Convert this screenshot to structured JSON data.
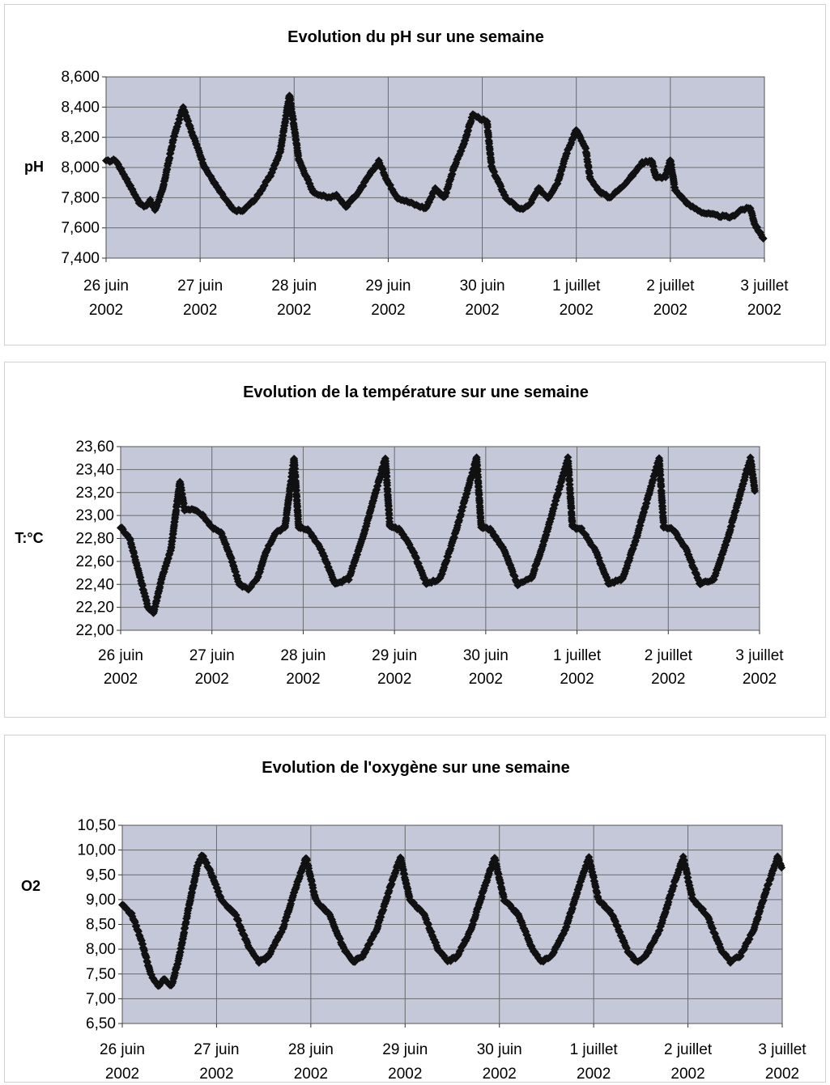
{
  "chart_data": [
    {
      "type": "scatter",
      "title": "Evolution du pH sur une semaine",
      "ylabel": "pH",
      "xlabel": "",
      "ylim": [
        7.4,
        8.6
      ],
      "xlim": [
        0,
        7
      ],
      "yticks": [
        "7,400",
        "7,600",
        "7,800",
        "8,000",
        "8,200",
        "8,400",
        "8,600"
      ],
      "xticks": [
        {
          "line1": "26 juin",
          "line2": "2002"
        },
        {
          "line1": "27 juin",
          "line2": "2002"
        },
        {
          "line1": "28 juin",
          "line2": "2002"
        },
        {
          "line1": "29 juin",
          "line2": "2002"
        },
        {
          "line1": "30 juin",
          "line2": "2002"
        },
        {
          "line1": "1 juillet",
          "line2": "2002"
        },
        {
          "line1": "2 juillet",
          "line2": "2002"
        },
        {
          "line1": "3 juillet",
          "line2": "2002"
        }
      ],
      "grid": true,
      "marker_color": "#111111",
      "plot_bg": "#c4c8d8",
      "keypoints": [
        [
          0.0,
          8.04
        ],
        [
          0.1,
          8.05
        ],
        [
          0.22,
          7.92
        ],
        [
          0.35,
          7.77
        ],
        [
          0.42,
          7.74
        ],
        [
          0.47,
          7.78
        ],
        [
          0.52,
          7.72
        ],
        [
          0.6,
          7.85
        ],
        [
          0.72,
          8.2
        ],
        [
          0.82,
          8.4
        ],
        [
          0.92,
          8.22
        ],
        [
          1.05,
          8.0
        ],
        [
          1.2,
          7.85
        ],
        [
          1.35,
          7.72
        ],
        [
          1.45,
          7.71
        ],
        [
          1.6,
          7.8
        ],
        [
          1.75,
          7.95
        ],
        [
          1.85,
          8.1
        ],
        [
          1.95,
          8.48
        ],
        [
          2.05,
          8.05
        ],
        [
          2.2,
          7.84
        ],
        [
          2.35,
          7.8
        ],
        [
          2.45,
          7.82
        ],
        [
          2.55,
          7.74
        ],
        [
          2.7,
          7.85
        ],
        [
          2.8,
          7.95
        ],
        [
          2.9,
          8.04
        ],
        [
          3.0,
          7.9
        ],
        [
          3.1,
          7.8
        ],
        [
          3.3,
          7.75
        ],
        [
          3.4,
          7.73
        ],
        [
          3.5,
          7.86
        ],
        [
          3.6,
          7.8
        ],
        [
          3.7,
          8.0
        ],
        [
          3.8,
          8.15
        ],
        [
          3.9,
          8.35
        ],
        [
          4.05,
          8.3
        ],
        [
          4.1,
          8.0
        ],
        [
          4.25,
          7.8
        ],
        [
          4.4,
          7.72
        ],
        [
          4.5,
          7.75
        ],
        [
          4.6,
          7.86
        ],
        [
          4.7,
          7.8
        ],
        [
          4.8,
          7.9
        ],
        [
          4.9,
          8.1
        ],
        [
          5.0,
          8.25
        ],
        [
          5.1,
          8.12
        ],
        [
          5.15,
          7.92
        ],
        [
          5.25,
          7.84
        ],
        [
          5.35,
          7.8
        ],
        [
          5.45,
          7.85
        ],
        [
          5.6,
          7.95
        ],
        [
          5.7,
          8.03
        ],
        [
          5.8,
          8.05
        ],
        [
          5.85,
          7.93
        ],
        [
          5.95,
          7.94
        ],
        [
          6.0,
          8.05
        ],
        [
          6.05,
          7.85
        ],
        [
          6.2,
          7.75
        ],
        [
          6.35,
          7.7
        ],
        [
          6.5,
          7.68
        ],
        [
          6.65,
          7.67
        ],
        [
          6.75,
          7.72
        ],
        [
          6.85,
          7.73
        ],
        [
          6.9,
          7.62
        ],
        [
          7.0,
          7.52
        ]
      ]
    },
    {
      "type": "scatter",
      "title": "Evolution de la température sur une semaine",
      "ylabel": "T:°C",
      "xlabel": "",
      "ylim": [
        22.0,
        23.6
      ],
      "xlim": [
        0,
        7
      ],
      "yticks": [
        "22,00",
        "22,20",
        "22,40",
        "22,60",
        "22,80",
        "23,00",
        "23,20",
        "23,40",
        "23,60"
      ],
      "xticks": [
        {
          "line1": "26 juin",
          "line2": "2002"
        },
        {
          "line1": "27 juin",
          "line2": "2002"
        },
        {
          "line1": "28 juin",
          "line2": "2002"
        },
        {
          "line1": "29 juin",
          "line2": "2002"
        },
        {
          "line1": "30 juin",
          "line2": "2002"
        },
        {
          "line1": "1 juillet",
          "line2": "2002"
        },
        {
          "line1": "2 juillet",
          "line2": "2002"
        },
        {
          "line1": "3 juillet",
          "line2": "2002"
        }
      ],
      "grid": true,
      "marker_color": "#111111",
      "plot_bg": "#c4c8d8",
      "keypoints": [
        [
          0.0,
          22.9
        ],
        [
          0.1,
          22.8
        ],
        [
          0.2,
          22.5
        ],
        [
          0.3,
          22.2
        ],
        [
          0.36,
          22.15
        ],
        [
          0.45,
          22.45
        ],
        [
          0.55,
          22.7
        ],
        [
          0.6,
          23.0
        ],
        [
          0.65,
          23.3
        ],
        [
          0.7,
          23.05
        ],
        [
          0.8,
          23.05
        ],
        [
          0.9,
          23.0
        ],
        [
          1.0,
          22.9
        ],
        [
          1.1,
          22.85
        ],
        [
          1.2,
          22.65
        ],
        [
          1.3,
          22.4
        ],
        [
          1.4,
          22.36
        ],
        [
          1.5,
          22.45
        ],
        [
          1.6,
          22.7
        ],
        [
          1.7,
          22.85
        ],
        [
          1.8,
          22.9
        ],
        [
          1.9,
          23.5
        ],
        [
          1.95,
          22.9
        ],
        [
          2.05,
          22.88
        ],
        [
          2.2,
          22.7
        ],
        [
          2.35,
          22.4
        ],
        [
          2.5,
          22.45
        ],
        [
          2.65,
          22.8
        ],
        [
          2.9,
          23.5
        ],
        [
          2.95,
          22.9
        ],
        [
          3.05,
          22.88
        ],
        [
          3.2,
          22.7
        ],
        [
          3.35,
          22.4
        ],
        [
          3.5,
          22.45
        ],
        [
          3.65,
          22.8
        ],
        [
          3.9,
          23.5
        ],
        [
          3.95,
          22.9
        ],
        [
          4.05,
          22.88
        ],
        [
          4.2,
          22.7
        ],
        [
          4.35,
          22.4
        ],
        [
          4.5,
          22.45
        ],
        [
          4.65,
          22.8
        ],
        [
          4.9,
          23.5
        ],
        [
          4.95,
          22.9
        ],
        [
          5.05,
          22.88
        ],
        [
          5.2,
          22.7
        ],
        [
          5.35,
          22.4
        ],
        [
          5.5,
          22.45
        ],
        [
          5.65,
          22.8
        ],
        [
          5.9,
          23.5
        ],
        [
          5.95,
          22.9
        ],
        [
          6.05,
          22.88
        ],
        [
          6.2,
          22.7
        ],
        [
          6.35,
          22.4
        ],
        [
          6.5,
          22.45
        ],
        [
          6.65,
          22.8
        ],
        [
          6.9,
          23.5
        ],
        [
          6.95,
          23.2
        ]
      ]
    },
    {
      "type": "scatter",
      "title": "Evolution de l'oxygène sur une semaine",
      "ylabel": "O2",
      "xlabel": "",
      "ylim": [
        6.5,
        10.5
      ],
      "xlim": [
        0,
        7
      ],
      "yticks": [
        "6,50",
        "7,00",
        "7,50",
        "8,00",
        "8,50",
        "9,00",
        "9,50",
        "10,00",
        "10,50"
      ],
      "xticks": [
        {
          "line1": "26 juin",
          "line2": "2002"
        },
        {
          "line1": "27 juin",
          "line2": "2002"
        },
        {
          "line1": "28 juin",
          "line2": "2002"
        },
        {
          "line1": "29 juin",
          "line2": "2002"
        },
        {
          "line1": "30 juin",
          "line2": "2002"
        },
        {
          "line1": "1 juillet",
          "line2": "2002"
        },
        {
          "line1": "2 juillet",
          "line2": "2002"
        },
        {
          "line1": "3 juillet",
          "line2": "2002"
        }
      ],
      "grid": true,
      "marker_color": "#111111",
      "plot_bg": "#c4c8d8",
      "keypoints": [
        [
          0.0,
          8.9
        ],
        [
          0.1,
          8.7
        ],
        [
          0.2,
          8.2
        ],
        [
          0.3,
          7.5
        ],
        [
          0.38,
          7.25
        ],
        [
          0.45,
          7.4
        ],
        [
          0.52,
          7.25
        ],
        [
          0.6,
          7.8
        ],
        [
          0.7,
          8.8
        ],
        [
          0.8,
          9.7
        ],
        [
          0.85,
          9.9
        ],
        [
          0.95,
          9.5
        ],
        [
          1.05,
          9.0
        ],
        [
          1.2,
          8.7
        ],
        [
          1.35,
          8.0
        ],
        [
          1.45,
          7.75
        ],
        [
          1.55,
          7.85
        ],
        [
          1.7,
          8.4
        ],
        [
          1.85,
          9.3
        ],
        [
          1.95,
          9.85
        ],
        [
          2.05,
          9.0
        ],
        [
          2.2,
          8.7
        ],
        [
          2.35,
          8.0
        ],
        [
          2.45,
          7.75
        ],
        [
          2.55,
          7.85
        ],
        [
          2.7,
          8.4
        ],
        [
          2.85,
          9.3
        ],
        [
          2.95,
          9.85
        ],
        [
          3.05,
          9.0
        ],
        [
          3.2,
          8.7
        ],
        [
          3.35,
          8.0
        ],
        [
          3.45,
          7.75
        ],
        [
          3.55,
          7.85
        ],
        [
          3.7,
          8.4
        ],
        [
          3.85,
          9.3
        ],
        [
          3.95,
          9.85
        ],
        [
          4.05,
          9.0
        ],
        [
          4.2,
          8.7
        ],
        [
          4.35,
          8.0
        ],
        [
          4.45,
          7.75
        ],
        [
          4.55,
          7.85
        ],
        [
          4.7,
          8.4
        ],
        [
          4.85,
          9.3
        ],
        [
          4.95,
          9.85
        ],
        [
          5.05,
          9.0
        ],
        [
          5.2,
          8.7
        ],
        [
          5.35,
          8.0
        ],
        [
          5.45,
          7.75
        ],
        [
          5.55,
          7.85
        ],
        [
          5.7,
          8.4
        ],
        [
          5.85,
          9.3
        ],
        [
          5.95,
          9.85
        ],
        [
          6.05,
          9.0
        ],
        [
          6.2,
          8.7
        ],
        [
          6.35,
          8.0
        ],
        [
          6.45,
          7.75
        ],
        [
          6.55,
          7.85
        ],
        [
          6.7,
          8.4
        ],
        [
          6.85,
          9.3
        ],
        [
          6.95,
          9.85
        ],
        [
          7.0,
          9.6
        ]
      ]
    }
  ]
}
